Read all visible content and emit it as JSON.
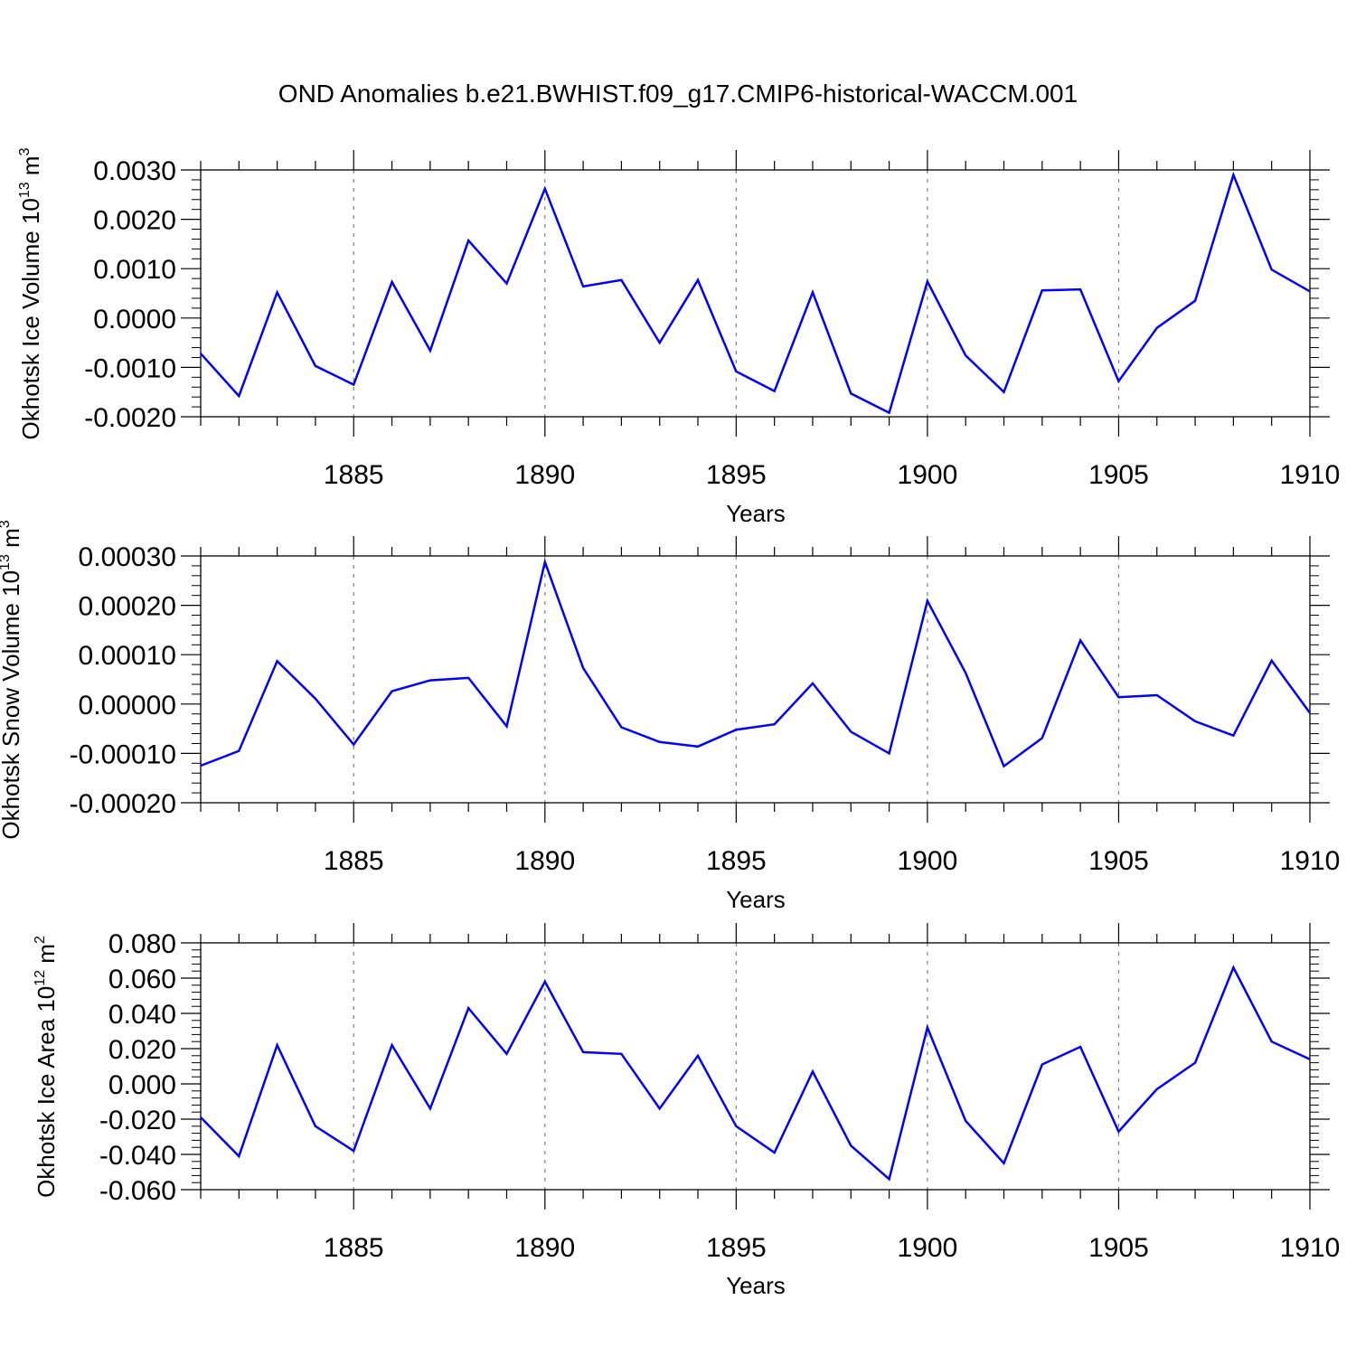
{
  "title": "OND Anomalies b.e21.BWHIST.f09_g17.CMIP6-historical-WACCM.001",
  "colors": {
    "series": "#0000ff",
    "axes": "#000000",
    "grid": "#808080"
  },
  "chart_data": [
    {
      "type": "line",
      "ylabel": "Okhotsk Ice Volume 10",
      "ylabel_exp": "13",
      "ylabel_unit": " m",
      "ylabel_unit_exp": "3",
      "xlabel": "Years",
      "xlim": [
        1881,
        1910
      ],
      "ylim": [
        -0.002,
        0.003
      ],
      "yticks": [
        -0.002,
        -0.001,
        0.0,
        0.001,
        0.002,
        0.003
      ],
      "ytick_labels": [
        "-0.0020",
        "-0.0010",
        "0.0000",
        "0.0010",
        "0.0020",
        "0.0030"
      ],
      "xticks": [
        1885,
        1890,
        1895,
        1900,
        1905,
        1910
      ],
      "xtick_labels": [
        "1885",
        "1890",
        "1895",
        "1900",
        "1905",
        "1910"
      ],
      "grid": "vertical dashed at major x ticks",
      "x": [
        1881,
        1882,
        1883,
        1884,
        1885,
        1886,
        1887,
        1888,
        1889,
        1890,
        1891,
        1892,
        1893,
        1894,
        1895,
        1896,
        1897,
        1898,
        1899,
        1900,
        1901,
        1902,
        1903,
        1904,
        1905,
        1906,
        1907,
        1908,
        1909,
        1910
      ],
      "values": [
        -0.00072,
        -0.00158,
        0.00052,
        -0.00097,
        -0.00135,
        0.00073,
        -0.00066,
        0.00157,
        0.0007,
        0.00262,
        0.00064,
        0.00077,
        -0.0005,
        0.00077,
        -0.00108,
        -0.00148,
        0.00052,
        -0.00153,
        -0.00192,
        0.00074,
        -0.00076,
        -0.0015,
        0.00056,
        0.00058,
        -0.00128,
        -0.0002,
        0.00035,
        0.0029,
        0.00098,
        0.00054
      ]
    },
    {
      "type": "line",
      "ylabel": "Okhotsk Snow Volume 10",
      "ylabel_exp": "13",
      "ylabel_unit": " m",
      "ylabel_unit_exp": "3",
      "xlabel": "Years",
      "xlim": [
        1881,
        1910
      ],
      "ylim": [
        -0.0002,
        0.0003
      ],
      "yticks": [
        -0.0002,
        -0.0001,
        0.0,
        0.0001,
        0.0002,
        0.0003
      ],
      "ytick_labels": [
        "-0.00020",
        "-0.00010",
        "0.00000",
        "0.00010",
        "0.00020",
        "0.00030"
      ],
      "xticks": [
        1885,
        1890,
        1895,
        1900,
        1905,
        1910
      ],
      "xtick_labels": [
        "1885",
        "1890",
        "1895",
        "1900",
        "1905",
        "1910"
      ],
      "grid": "vertical dashed at major x ticks",
      "x": [
        1881,
        1882,
        1883,
        1884,
        1885,
        1886,
        1887,
        1888,
        1889,
        1890,
        1891,
        1892,
        1893,
        1894,
        1895,
        1896,
        1897,
        1898,
        1899,
        1900,
        1901,
        1902,
        1903,
        1904,
        1905,
        1906,
        1907,
        1908,
        1909,
        1910
      ],
      "values": [
        -0.000125,
        -9.5e-05,
        8.7e-05,
        1.1e-05,
        -8.2e-05,
        2.6e-05,
        4.8e-05,
        5.3e-05,
        -4.5e-05,
        0.000288,
        7.3e-05,
        -4.7e-05,
        -7.7e-05,
        -8.6e-05,
        -5.2e-05,
        -4.1e-05,
        4.2e-05,
        -5.6e-05,
        -0.0001,
        0.000209,
        6.3e-05,
        -0.000126,
        -6.9e-05,
        0.000129,
        1.4e-05,
        1.8e-05,
        -3.5e-05,
        -6.4e-05,
        8.8e-05,
        -1.8e-05
      ]
    },
    {
      "type": "line",
      "ylabel": "Okhotsk Ice Area 10",
      "ylabel_exp": "12",
      "ylabel_unit": " m",
      "ylabel_unit_exp": "2",
      "xlabel": "Years",
      "xlim": [
        1881,
        1910
      ],
      "ylim": [
        -0.06,
        0.08
      ],
      "yticks": [
        -0.06,
        -0.04,
        -0.02,
        0.0,
        0.02,
        0.04,
        0.06,
        0.08
      ],
      "ytick_labels": [
        "-0.060",
        "-0.040",
        "-0.020",
        "0.000",
        "0.020",
        "0.040",
        "0.060",
        "0.080"
      ],
      "xticks": [
        1885,
        1890,
        1895,
        1900,
        1905,
        1910
      ],
      "xtick_labels": [
        "1885",
        "1890",
        "1895",
        "1900",
        "1905",
        "1910"
      ],
      "grid": "vertical dashed at major x ticks",
      "x": [
        1881,
        1882,
        1883,
        1884,
        1885,
        1886,
        1887,
        1888,
        1889,
        1890,
        1891,
        1892,
        1893,
        1894,
        1895,
        1896,
        1897,
        1898,
        1899,
        1900,
        1901,
        1902,
        1903,
        1904,
        1905,
        1906,
        1907,
        1908,
        1909,
        1910
      ],
      "values": [
        -0.019,
        -0.041,
        0.022,
        -0.024,
        -0.038,
        0.022,
        -0.014,
        0.043,
        0.017,
        0.058,
        0.018,
        0.017,
        -0.014,
        0.016,
        -0.024,
        -0.039,
        0.007,
        -0.035,
        -0.054,
        0.032,
        -0.021,
        -0.045,
        0.011,
        0.021,
        -0.027,
        -0.003,
        0.012,
        0.066,
        0.024,
        0.014
      ]
    }
  ]
}
